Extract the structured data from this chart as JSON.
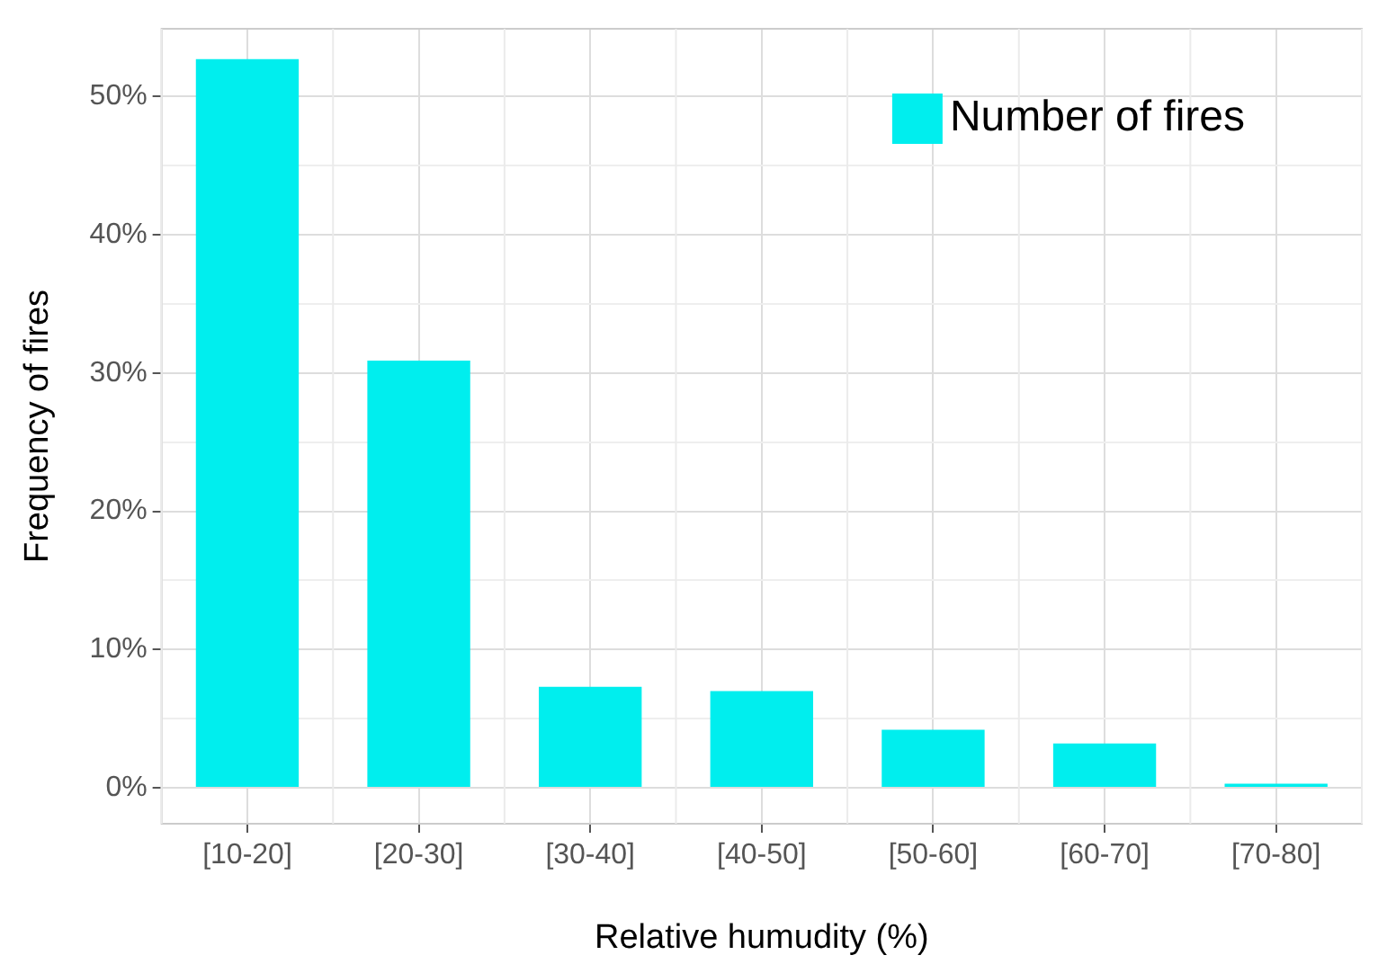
{
  "chart_data": {
    "type": "bar",
    "xlabel": "Relative humudity (%)",
    "ylabel": "Frequency of fires",
    "categories": [
      "[10-20]",
      "[20-30]",
      "[30-40]",
      "[40-50]",
      "[50-60]",
      "[60-70]",
      "[70-80]"
    ],
    "series": [
      {
        "name": "Number of fires",
        "color": "#00eeee",
        "values": [
          52.7,
          30.9,
          7.3,
          7.0,
          4.2,
          3.2,
          0.3
        ]
      }
    ],
    "ylim": [
      -2.6,
      54.9
    ],
    "yticks": [
      {
        "value": 0,
        "label": "0%"
      },
      {
        "value": 5,
        "label": null
      },
      {
        "value": 10,
        "label": "10%"
      },
      {
        "value": 15,
        "label": null
      },
      {
        "value": 20,
        "label": "20%"
      },
      {
        "value": 25,
        "label": null
      },
      {
        "value": 30,
        "label": "30%"
      },
      {
        "value": 35,
        "label": null
      },
      {
        "value": 40,
        "label": "40%"
      },
      {
        "value": 45,
        "label": null
      },
      {
        "value": 50,
        "label": "50%"
      }
    ],
    "grid": true,
    "legend": "top right"
  }
}
